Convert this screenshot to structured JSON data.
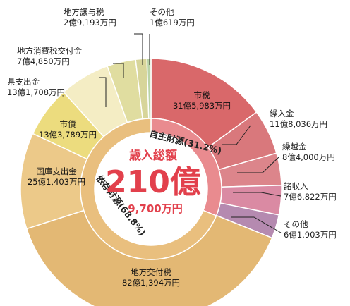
{
  "chart_data": {
    "type": "pie",
    "total": {
      "title": "歳入総額",
      "amount": "210億",
      "amount_sub": "9,700万円"
    },
    "groups": [
      {
        "name": "自主財源(31.2%)",
        "percent": 31.2,
        "color": "#e98b8f"
      },
      {
        "name": "依存財源(68.8%)",
        "percent": 68.8,
        "color": "#e9bf7e"
      }
    ],
    "slices": [
      {
        "name": "市税",
        "amount": "31億5,983万円",
        "value": 31.5983,
        "group": 0,
        "color": "#d9686a",
        "label_pos": "inside"
      },
      {
        "name": "繰入金",
        "amount": "11億8,036万円",
        "value": 11.8036,
        "group": 0,
        "color": "#d9787c",
        "label_pos": "outside-right"
      },
      {
        "name": "繰越金",
        "amount": "8億4,000万円",
        "value": 8.4,
        "group": 0,
        "color": "#dc858b",
        "label_pos": "outside-right"
      },
      {
        "name": "諸収入",
        "amount": "7億6,822万円",
        "value": 7.6822,
        "group": 0,
        "color": "#da8aa3",
        "label_pos": "outside-right"
      },
      {
        "name": "その他",
        "amount": "6億1,903万円",
        "value": 6.1903,
        "group": 0,
        "color": "#b58ab0",
        "label_pos": "outside-right"
      },
      {
        "name": "地方交付税",
        "amount": "82億1,394万円",
        "value": 82.1394,
        "group": 1,
        "color": "#e3b874",
        "label_pos": "inside"
      },
      {
        "name": "国庫支出金",
        "amount": "25億1,403万円",
        "value": 25.1403,
        "group": 1,
        "color": "#ecc989",
        "label_pos": "inside"
      },
      {
        "name": "市債",
        "amount": "13億3,789万円",
        "value": 13.3789,
        "group": 1,
        "color": "#ecdc7e",
        "label_pos": "inside"
      },
      {
        "name": "県支出金",
        "amount": "13億1,708万円",
        "value": 13.1708,
        "group": 1,
        "color": "#f4edc4",
        "label_pos": "outside-left"
      },
      {
        "name": "地方消費税交付金",
        "amount": "7億4,850万円",
        "value": 7.485,
        "group": 1,
        "color": "#e0dda0",
        "label_pos": "outside-left"
      },
      {
        "name": "地方譲与税",
        "amount": "2億9,193万円",
        "value": 2.9193,
        "group": 1,
        "color": "#d7d59a",
        "label_pos": "outside-top"
      },
      {
        "name": "その他",
        "amount": "1億619万円",
        "value": 1.0619,
        "group": 1,
        "color": "#b9d3a6",
        "label_pos": "outside-top"
      }
    ]
  }
}
